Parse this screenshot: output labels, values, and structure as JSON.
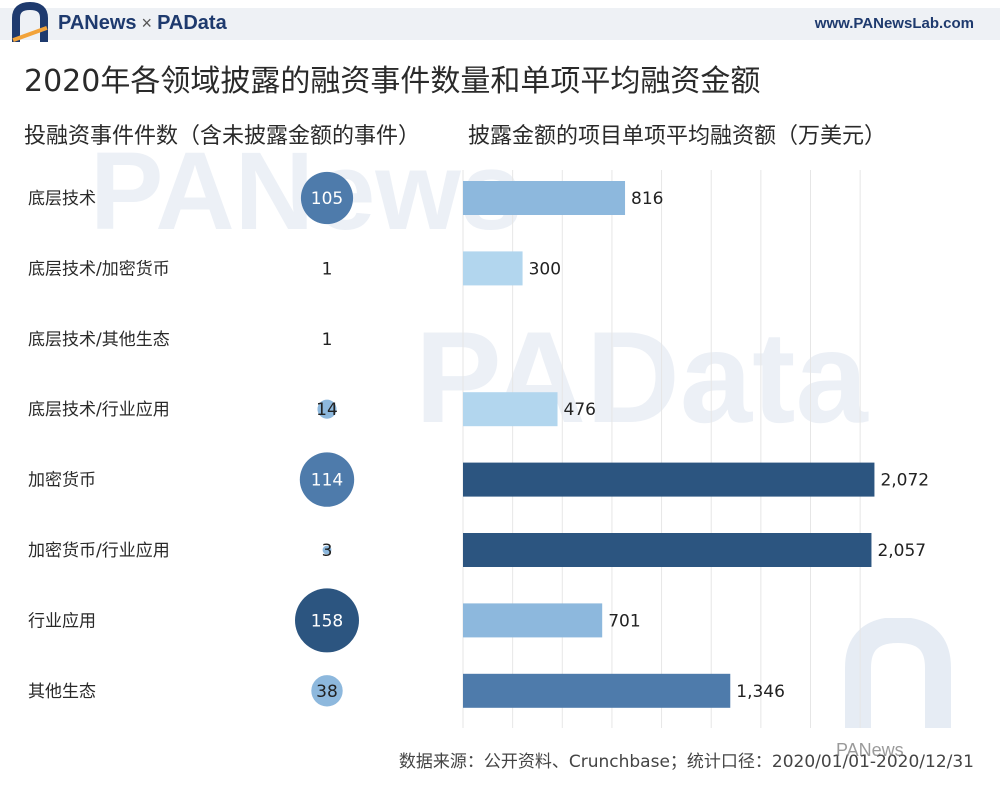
{
  "header": {
    "brand_left": "PANews",
    "brand_times": "×",
    "brand_right": "PAData",
    "site": "www.PANewsLab.com"
  },
  "title": "2020年各领域披露的融资事件数量和单项平均融资金额",
  "subtitle_left": "投融资事件件数（含未披露金额的事件）",
  "subtitle_right": "披露金额的项目单项平均融资额（万美元）",
  "watermarks": {
    "top": "PANews",
    "middle": "PAData"
  },
  "footer": "数据来源：公开资料、Crunchbase；统计口径：2020/01/01-2020/12/31",
  "stamp": "PANews",
  "colors": {
    "dark": "#2c5580",
    "mid": "#4e7bab",
    "light": "#8db8dd",
    "pale": "#b2d6ee",
    "grid": "#e6e6e6"
  },
  "chart_data": [
    {
      "type": "bubble",
      "title": "投融资事件件数（含未披露金额的事件）",
      "categories": [
        "底层技术",
        "底层技术/加密货币",
        "底层技术/其他生态",
        "底层技术/行业应用",
        "加密货币",
        "加密货币/行业应用",
        "行业应用",
        "其他生态"
      ],
      "values": [
        105,
        1,
        1,
        14,
        114,
        3,
        158,
        38
      ],
      "labels": [
        "105",
        "1",
        "1",
        "14",
        "114",
        "3",
        "158",
        "38"
      ]
    },
    {
      "type": "bar",
      "orientation": "horizontal",
      "title": "披露金额的项目单项平均融资额（万美元）",
      "categories": [
        "底层技术",
        "底层技术/加密货币",
        "底层技术/其他生态",
        "底层技术/行业应用",
        "加密货币",
        "加密货币/行业应用",
        "行业应用",
        "其他生态"
      ],
      "values": [
        816,
        300,
        null,
        476,
        2072,
        2057,
        701,
        1346
      ],
      "labels": [
        "816",
        "300",
        "",
        "476",
        "2,072",
        "2,057",
        "701",
        "1,346"
      ],
      "xlim": [
        0,
        2100
      ],
      "grid": true
    }
  ]
}
